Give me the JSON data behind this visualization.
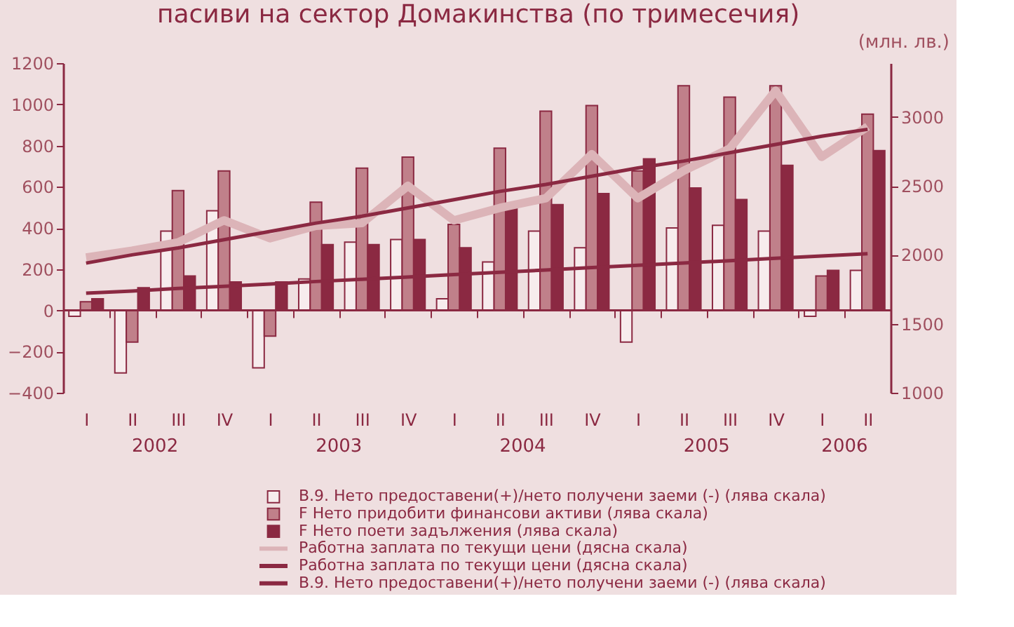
{
  "chart_data": {
    "type": "bar",
    "title": "пасиви на сектор Домакинства (по тримесечия)",
    "y2label": "(млн. лв.)",
    "categories": [
      "I",
      "II",
      "III",
      "IV",
      "I",
      "II",
      "III",
      "IV",
      "I",
      "II",
      "III",
      "IV",
      "I",
      "II",
      "III",
      "IV",
      "I",
      "II"
    ],
    "annotations": [
      "2002",
      "2003",
      "2004",
      "2005",
      "2006"
    ],
    "ylim": [
      -400,
      1200
    ],
    "yticks": [
      -400,
      -200,
      0,
      200,
      400,
      600,
      800,
      1000,
      1200
    ],
    "y2lim": [
      1000,
      3390
    ],
    "y2ticks": [
      1000,
      1500,
      2000,
      2500,
      3000
    ],
    "grid": false,
    "legend": "bottom",
    "ref_lines": [
      {
        "axis": "y",
        "value": 0,
        "color": "#8b2942"
      }
    ],
    "series": [
      {
        "name": "B.9. Нето предоставени(+)/нето получени заеми (-) (лява скала)",
        "color": "#f7eced",
        "values": [
          -29,
          -304,
          385,
          483,
          -279,
          152,
          331,
          344,
          56,
          235,
          385,
          304,
          -154,
          400,
          413,
          385,
          -29,
          194
        ]
      },
      {
        "name": "F Нето придобити финансови активи (лява скала)",
        "color": "#c0808a",
        "values": [
          42,
          -154,
          581,
          677,
          -125,
          525,
          690,
          744,
          417,
          787,
          967,
          994,
          677,
          1090,
          1035,
          1090,
          167,
          952
        ]
      },
      {
        "name": "F Нето поети задължения (лява скала)",
        "color": "#8b2942",
        "values": [
          56,
          110,
          167,
          138,
          138,
          319,
          319,
          344,
          304,
          496,
          513,
          567,
          735,
          594,
          538,
          704,
          194,
          775
        ]
      },
      {
        "name": "Работна заплата по текущи цени (дясна скала)",
        "type": "line",
        "axis": "y2",
        "color": "#dcb4b8",
        "values": [
          1980,
          2030,
          2090,
          2250,
          2120,
          2210,
          2230,
          2500,
          2250,
          2340,
          2410,
          2730,
          2410,
          2610,
          2770,
          3190,
          2710,
          2930
        ]
      },
      {
        "name": "Работна заплата по текущи цени (дясна скала)",
        "type": "line",
        "axis": "y2",
        "color": "#8b2942",
        "values": [
          1940,
          2000,
          2050,
          2110,
          2170,
          2230,
          2280,
          2340,
          2400,
          2460,
          2510,
          2570,
          2630,
          2680,
          2740,
          2800,
          2860,
          2910
        ]
      },
      {
        "name": "B.9. Нето предоставени(+)/нето получени заеми (-) (лява скала)",
        "type": "line",
        "color": "#8b2942",
        "values": [
          83,
          94,
          106,
          117,
          128,
          140,
          151,
          162,
          174,
          185,
          196,
          208,
          219,
          230,
          241,
          253,
          264,
          275
        ]
      }
    ]
  }
}
